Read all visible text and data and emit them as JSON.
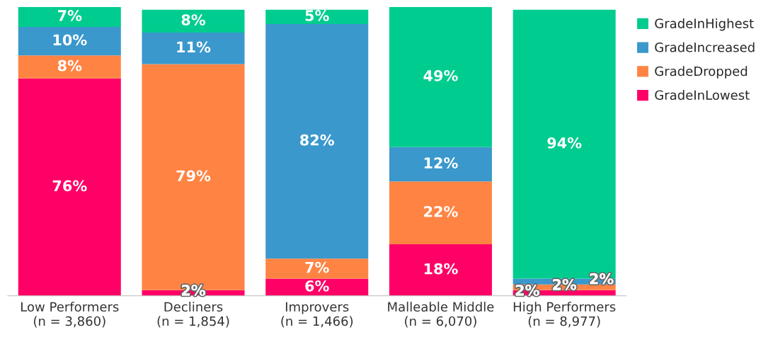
{
  "chart_data": {
    "type": "bar",
    "stacked": true,
    "legend": "top right",
    "categories": [
      "Low Performers\n(n = 3,860)",
      "Decliners\n(n = 1,854)",
      "Improvers\n(n = 1,466)",
      "Malleable Middle\n(n = 6,070)",
      "High Performers\n(n = 8,977)"
    ],
    "series": [
      {
        "name": "GradeInLowest",
        "color": "#ff0066",
        "values": [
          76,
          2,
          6,
          18,
          2
        ],
        "value_labels": [
          "76%",
          "2%",
          "6%",
          "18%",
          "2%"
        ]
      },
      {
        "name": "GradeDropped",
        "color": "#ff8444",
        "values": [
          8,
          79,
          7,
          22,
          2
        ],
        "value_labels": [
          "8%",
          "79%",
          "7%",
          "22%",
          "2%"
        ]
      },
      {
        "name": "GradeIncreased",
        "color": "#3a98cc",
        "values": [
          10,
          11,
          82,
          12,
          2
        ],
        "value_labels": [
          "10%",
          "11%",
          "82%",
          "12%",
          "2%"
        ]
      },
      {
        "name": "GradeInHighest",
        "color": "#00cc8f",
        "values": [
          7,
          8,
          5,
          49,
          94
        ],
        "value_labels": [
          "7%",
          "8%",
          "5%",
          "49%",
          "94%"
        ]
      }
    ]
  }
}
